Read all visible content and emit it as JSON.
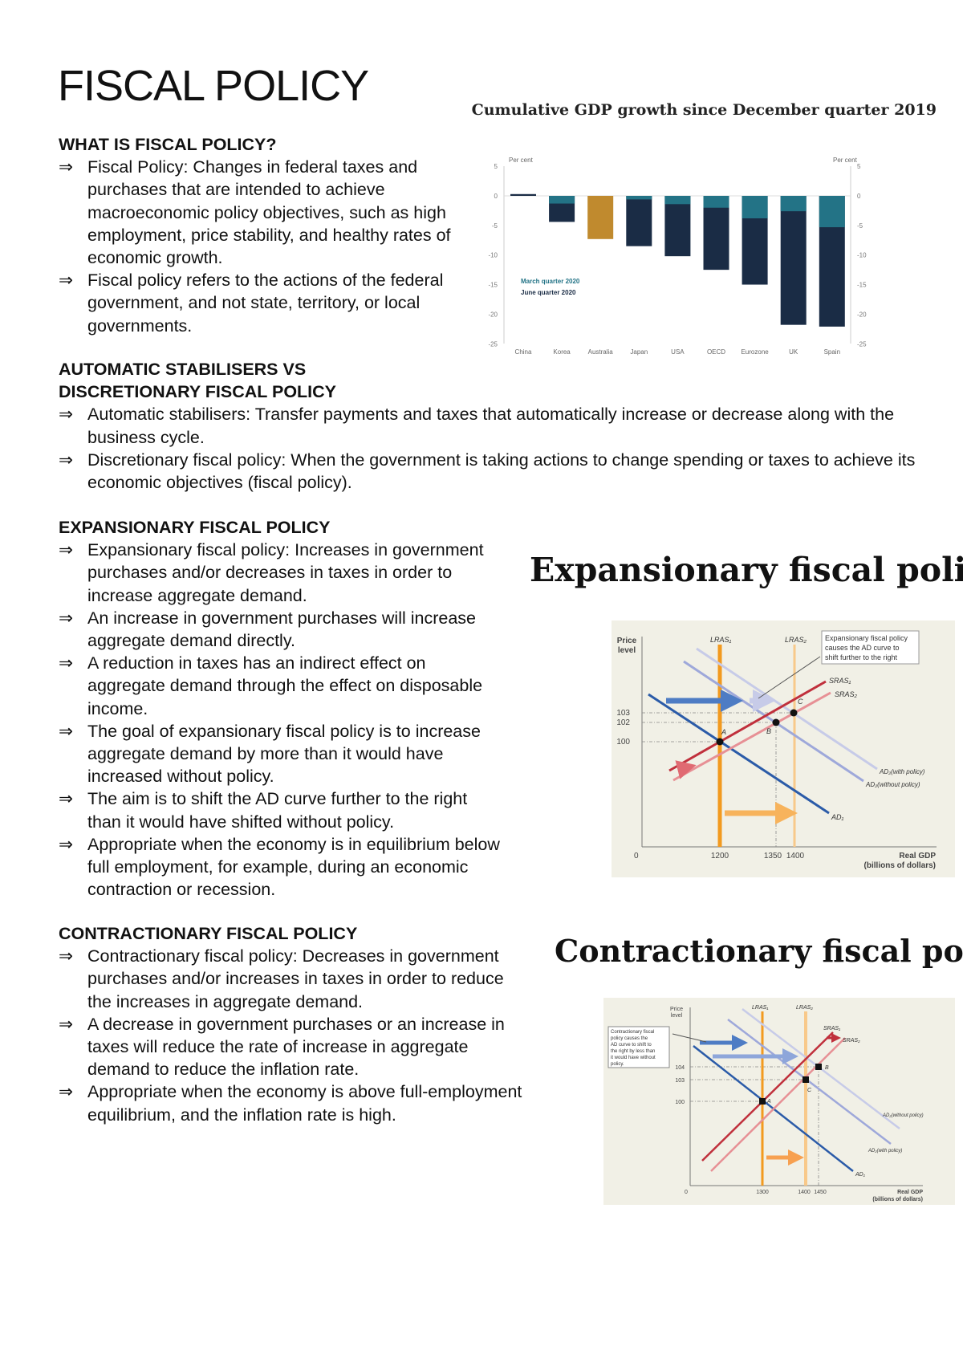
{
  "title": "FISCAL POLICY",
  "sections": [
    {
      "heading": "WHAT IS FISCAL POLICY?",
      "items": [
        "Fiscal Policy: Changes in federal taxes and purchases that are intended to achieve macroeconomic policy objectives, such as high employment, price stability, and healthy rates of economic growth.",
        "Fiscal policy refers to the actions of the federal government, and not state, territory, or local governments."
      ]
    },
    {
      "heading": "AUTOMATIC STABILISERS VS DISCRETIONARY FISCAL POLICY",
      "items": [
        "Automatic stabilisers: Transfer payments and taxes that automatically increase or decrease along with the business cycle.",
        "Discretionary fiscal policy: When the government is taking actions to change spending or taxes to achieve its economic objectives (fiscal policy)."
      ]
    },
    {
      "heading": "EXPANSIONARY FISCAL POLICY",
      "items": [
        "Expansionary fiscal policy: Increases in government purchases and/or decreases in taxes in order to increase aggregate demand.",
        "An increase in government purchases will increase aggregate demand directly.",
        "A reduction in taxes has an indirect effect on aggregate demand through the effect on disposable income.",
        "The goal of expansionary fiscal policy is to increase aggregate demand by more than it would have increased without policy.",
        "The aim is to shift the AD curve further to the right than it would have shifted without policy.",
        "Appropriate when the economy is in equilibrium below full employment, for example, during an economic contraction or recession."
      ]
    },
    {
      "heading": "CONTRACTIONARY FISCAL POLICY",
      "items": [
        "Contractionary fiscal policy: Decreases in government purchases and/or increases in taxes in order to reduce the increases in aggregate demand.",
        "A decrease in government purchases or an increase in taxes will reduce the rate of increase in aggregate demand to reduce the inflation rate.",
        "Appropriate when the economy is above full-employment equilibrium, and the inflation rate is high."
      ]
    }
  ],
  "bullet_symbol": "⇒",
  "chart_data": {
    "type": "bar",
    "title": "Cumulative GDP growth since December quarter 2019",
    "ylabel_left": "Per cent",
    "ylabel_right": "Per cent",
    "categories": [
      "China",
      "Korea",
      "Australia",
      "Japan",
      "USA",
      "OECD",
      "Eurozone",
      "UK",
      "Spain"
    ],
    "series": [
      {
        "name": "March quarter 2020",
        "color": "#237386",
        "values": [
          0,
          -1.3,
          -0.3,
          -0.6,
          -1.4,
          -2.0,
          -3.8,
          -2.6,
          -5.3
        ]
      },
      {
        "name": "June quarter 2020",
        "color": "#1a2c45",
        "values": [
          0.3,
          -4.4,
          -7.3,
          -8.5,
          -10.2,
          -12.5,
          -15.0,
          -21.8,
          -22.1
        ]
      }
    ],
    "highlight": {
      "category": "Australia",
      "color": "#c08a2e"
    },
    "yticks": [
      5,
      0,
      -5,
      -10,
      -15,
      -20,
      -25
    ],
    "ylim": [
      -25,
      5
    ],
    "grid": false,
    "legend": "left-middle"
  },
  "expansionary": {
    "heading": "Expansionary fiscal policy",
    "ylabel": [
      "Price",
      "level"
    ],
    "xlabel": [
      "Real GDP",
      "(billions of dollars)"
    ],
    "origin": "0",
    "yticks": [
      "103",
      "102",
      "100"
    ],
    "xticks": [
      "1200",
      "1350",
      "1400"
    ],
    "curves": {
      "lras1": "LRAS₁",
      "lras2": "LRAS₂",
      "sras1": "SRAS₁",
      "sras2": "SRAS₂",
      "ad1": "AD₁",
      "ad2_with": "AD₂(with policy)",
      "ad2_without": "AD₂(without policy)"
    },
    "points": [
      "A",
      "B",
      "C"
    ],
    "note": [
      "Expansionary fiscal policy",
      "causes the AD curve to",
      "shift further to the right"
    ]
  },
  "contractionary": {
    "heading": "Contractionary fiscal policy",
    "ylabel": [
      "Price",
      "level"
    ],
    "xlabel": [
      "Real GDP",
      "(billions of dollars)"
    ],
    "origin": "0",
    "yticks": [
      "104",
      "103",
      "100"
    ],
    "xticks": [
      "1300",
      "1400",
      "1450"
    ],
    "curves": {
      "lras1": "LRAS₁",
      "lras2": "LRAS₂",
      "sras1": "SRAS₁",
      "sras2": "SRAS₂",
      "ad1": "AD₁",
      "ad2_with": "AD₂(with policy)",
      "ad2_without": "AD₂(without policy)"
    },
    "points": [
      "A",
      "B",
      "C"
    ],
    "note": [
      "Contractionary fiscal",
      "policy causes the",
      "AD curve to shift to",
      "the right by less than",
      "it would have without",
      "policy."
    ]
  }
}
